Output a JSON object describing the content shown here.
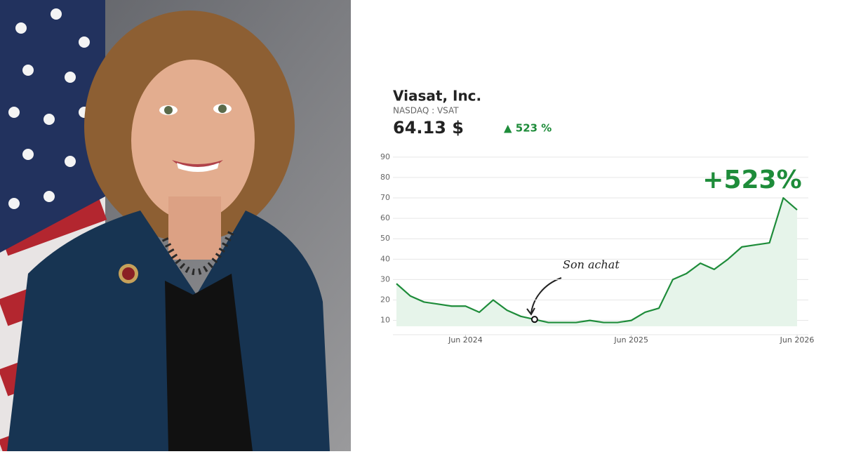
{
  "chart_data": {
    "type": "line",
    "title": "Viasat, Inc.",
    "subtitle": "NASDAQ : VSAT",
    "price": "64.13 $",
    "change": "▲ 523 %",
    "big_label": "+523%",
    "annotation": {
      "text": "Son achat",
      "x": "2024-11"
    },
    "x": [
      "2024-01",
      "2024-02",
      "2024-03",
      "2024-04",
      "2024-05",
      "2024-06",
      "2024-07",
      "2024-08",
      "2024-09",
      "2024-10",
      "2024-11",
      "2024-12",
      "2025-01",
      "2025-02",
      "2025-03",
      "2025-04",
      "2025-05",
      "2025-06",
      "2025-07",
      "2025-08",
      "2025-09",
      "2025-10",
      "2025-11",
      "2025-12",
      "2026-01",
      "2026-02",
      "2026-03",
      "2026-04",
      "2026-05",
      "2026-06"
    ],
    "series": [
      {
        "name": "VSAT",
        "color": "#1e8c3a",
        "values": [
          28,
          22,
          19,
          18,
          17,
          17,
          14,
          20,
          15,
          12,
          10.5,
          9,
          9,
          9,
          10,
          9,
          9,
          10,
          14,
          16,
          30,
          33,
          38,
          35,
          40,
          46,
          47,
          48,
          70,
          64.13
        ]
      }
    ],
    "area_color": "#e6f4ea",
    "xlim": [
      "2024-01",
      "2026-06"
    ],
    "xticks": [
      {
        "value": "2024-06",
        "label": "Jun 2024"
      },
      {
        "value": "2025-06",
        "label": "Jun 2025"
      },
      {
        "value": "2026-06",
        "label": "Jun 2026"
      }
    ],
    "ylim": [
      3,
      92
    ],
    "yticks": [
      10,
      20,
      30,
      40,
      50,
      60,
      70,
      80,
      90
    ],
    "grid": true
  }
}
